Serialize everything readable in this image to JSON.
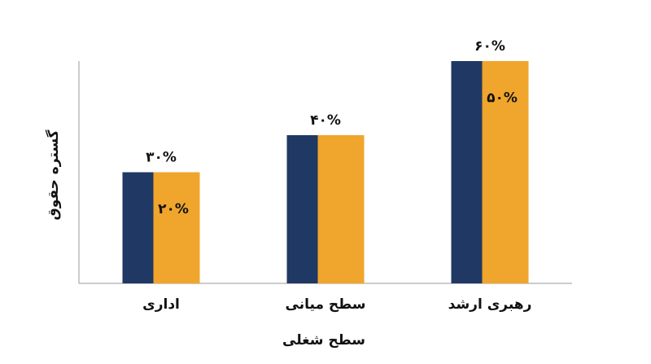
{
  "chart_data": {
    "type": "bar",
    "x_label": "سطح شغلی",
    "y_label": "گستره حقوق",
    "categories": [
      "اداری",
      "سطح میانی",
      "رهبری ارشد"
    ],
    "values": [
      30,
      40,
      60
    ],
    "value_labels": [
      "۳۰%",
      "۴۰%",
      "۶۰%"
    ],
    "series": [
      {
        "color": "#1f3864"
      },
      {
        "color": "#f0a52c"
      }
    ],
    "inner_values": [
      20,
      null,
      50
    ],
    "inner_value_labels": [
      "۲۰%",
      null,
      "۵۰%"
    ],
    "ylim": [
      0,
      60
    ]
  }
}
